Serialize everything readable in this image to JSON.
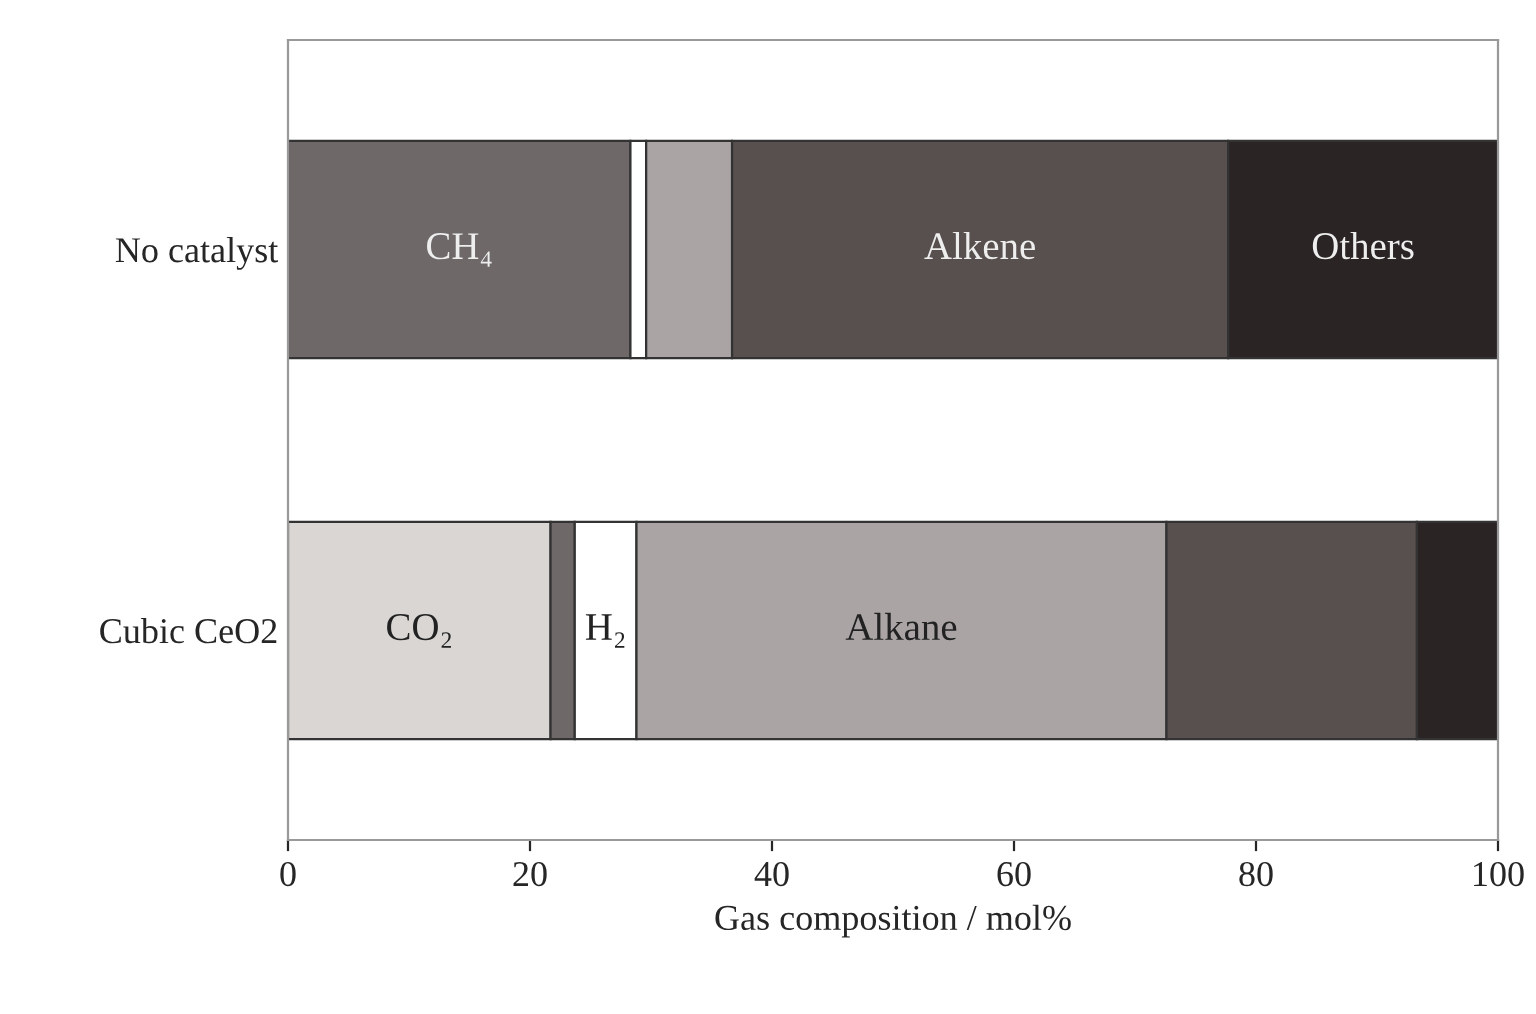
{
  "chart_data": {
    "type": "bar",
    "orientation": "horizontal",
    "stacked": true,
    "categories": [
      "No catalyst",
      "Cubic CeO2"
    ],
    "series": [
      {
        "name": "CO₂",
        "color": "#d9d6d4",
        "values": [
          0,
          21.7
        ]
      },
      {
        "name": "CH₄",
        "color": "#6e6869",
        "values": [
          28.3,
          2.0
        ]
      },
      {
        "name": "H₂",
        "color": "#ffffff",
        "values": [
          1.3,
          5.1
        ]
      },
      {
        "name": "Alkane",
        "color": "#aaa5a4",
        "values": [
          7.1,
          43.8
        ]
      },
      {
        "name": "Alkene",
        "color": "#57504f",
        "values": [
          41.0,
          20.7
        ]
      },
      {
        "name": "Others",
        "color": "#2b2424",
        "values": [
          22.3,
          6.7
        ]
      }
    ],
    "xlabel": "Gas composition / mol%",
    "xlim": [
      0,
      100
    ],
    "xticks": [
      0,
      20,
      40,
      60,
      80,
      100
    ],
    "grid": false,
    "legend": false
  }
}
